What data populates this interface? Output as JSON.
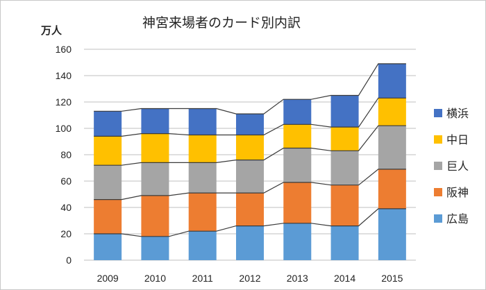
{
  "chart_data": {
    "type": "bar",
    "stacked": true,
    "title": "神宮来場者のカード別内訳",
    "ylabel": "万人",
    "xlabel": "",
    "ylim": [
      0,
      160
    ],
    "yticks": [
      0,
      20,
      40,
      60,
      80,
      100,
      120,
      140,
      160
    ],
    "grid": true,
    "legend_position": "right",
    "categories": [
      "2009",
      "2010",
      "2011",
      "2012",
      "2013",
      "2014",
      "2015"
    ],
    "series": [
      {
        "name": "広島",
        "color": "#5B9BD5",
        "values": [
          20,
          18,
          22,
          26,
          28,
          26,
          39
        ]
      },
      {
        "name": "阪神",
        "color": "#ED7D31",
        "values": [
          26,
          31,
          29,
          25,
          31,
          31,
          30
        ]
      },
      {
        "name": "巨人",
        "color": "#A5A5A5",
        "values": [
          26,
          25,
          23,
          25,
          26,
          26,
          33
        ]
      },
      {
        "name": "中日",
        "color": "#FFC000",
        "values": [
          22,
          22,
          21,
          19,
          18,
          18,
          21
        ]
      },
      {
        "name": "横浜",
        "color": "#4472C4",
        "values": [
          19,
          19,
          20,
          16,
          19,
          24,
          26
        ]
      }
    ]
  }
}
